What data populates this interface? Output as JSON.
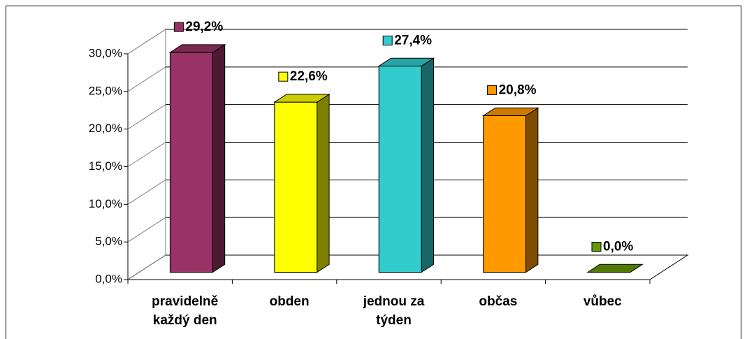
{
  "chart_data": {
    "type": "bar3d",
    "categories": [
      "pravidelně každý den",
      "obden",
      "jednou za týden",
      "občas",
      "vůbec"
    ],
    "values": [
      29.2,
      22.6,
      27.4,
      20.8,
      0.0
    ],
    "value_labels": [
      "29,2%",
      "22,6%",
      "27,4%",
      "20,8%",
      "0,0%"
    ],
    "colors": [
      "#993366",
      "#ffff00",
      "#33cccc",
      "#ff9900",
      "#669900"
    ],
    "ylim": [
      0,
      30
    ],
    "yticks": [
      {
        "value": 0,
        "label": "0,0%"
      },
      {
        "value": 5,
        "label": "5,0%"
      },
      {
        "value": 10,
        "label": "10,0%"
      },
      {
        "value": 15,
        "label": "15,0%"
      },
      {
        "value": 20,
        "label": "20,0%"
      },
      {
        "value": 25,
        "label": "25,0%"
      },
      {
        "value": 30,
        "label": "30,0%"
      }
    ],
    "grid": true
  }
}
